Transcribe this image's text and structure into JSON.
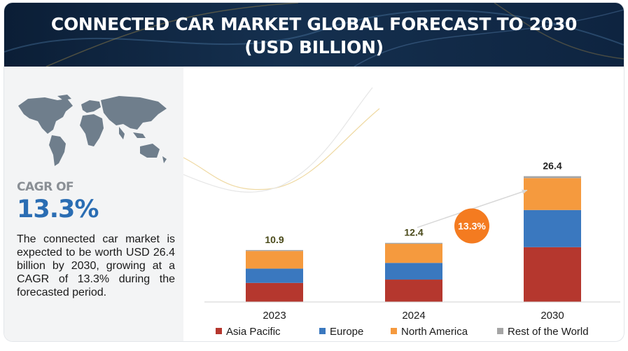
{
  "header": {
    "title": "CONNECTED CAR MARKET GLOBAL FORECAST TO 2030 (USD BILLION)"
  },
  "left_panel": {
    "cagr_label": "CAGR OF",
    "cagr_value": "13.3%",
    "description": "The connected car market is expected to be worth USD 26.4 billion by 2030, growing at a CAGR of 13.3% during the forecasted period."
  },
  "icons": {
    "map": "world-map-icon"
  },
  "colors": {
    "header_bg": "#0f2744",
    "cagr_blue": "#2a6db3",
    "asia_pacific": "#b5372e",
    "europe": "#3a78bf",
    "north_america": "#f59a3e",
    "rest_of_world": "#a5a5a5",
    "cagr_bubble": "#f47b20"
  },
  "chart_data": {
    "type": "bar",
    "stacked": true,
    "categories": [
      "2023",
      "2024",
      "2030"
    ],
    "totals": [
      10.9,
      12.4,
      26.4
    ],
    "total_labels": [
      "10.9",
      "12.4",
      "26.4"
    ],
    "series": [
      {
        "name": "Asia Pacific",
        "values": [
          4.0,
          4.7,
          11.5
        ]
      },
      {
        "name": "Europe",
        "values": [
          3.0,
          3.5,
          7.8
        ]
      },
      {
        "name": "North America",
        "values": [
          3.7,
          4.0,
          6.7
        ]
      },
      {
        "name": "Rest of the World",
        "values": [
          0.2,
          0.2,
          0.4
        ]
      }
    ],
    "cagr_annotation": "13.3%",
    "ylim": [
      0,
      30
    ],
    "grid": false,
    "legend_position": "bottom"
  }
}
